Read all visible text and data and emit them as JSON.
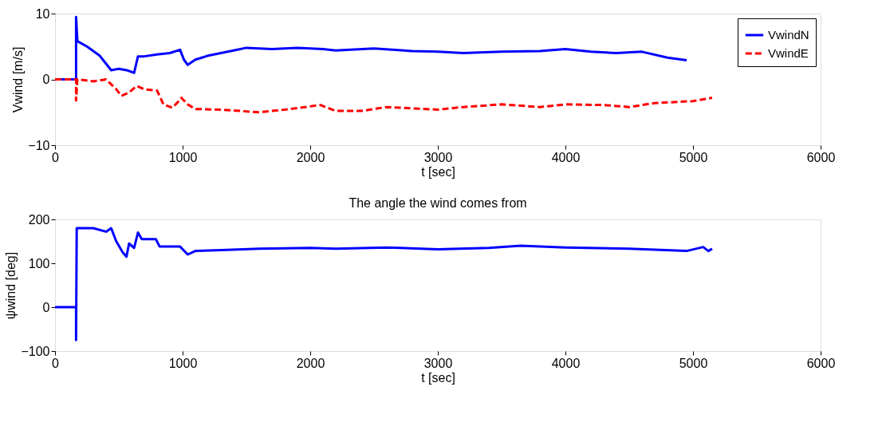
{
  "chart_data": [
    {
      "type": "line",
      "xlabel": "t [sec]",
      "ylabel": "Vwind [m/s]",
      "xlim": [
        0,
        6000
      ],
      "xticks": [
        0,
        1000,
        2000,
        3000,
        4000,
        5000,
        6000
      ],
      "ylim": [
        -10,
        10
      ],
      "yticks": [
        -10,
        0,
        10
      ],
      "grid": false,
      "legend": "top right",
      "marker": "none",
      "series": [
        {
          "name": "VwindN",
          "color": "#0000ff",
          "line_style": "solid",
          "x": [
            0,
            165,
            165,
            175,
            250,
            350,
            440,
            500,
            560,
            620,
            650,
            700,
            800,
            900,
            980,
            1010,
            1040,
            1100,
            1200,
            1300,
            1400,
            1500,
            1700,
            1900,
            2100,
            2200,
            2500,
            2800,
            3000,
            3200,
            3500,
            3800,
            4000,
            4200,
            4400,
            4600,
            4800,
            4950
          ],
          "values": [
            0,
            0,
            9.5,
            5.8,
            5.0,
            3.6,
            1.4,
            1.6,
            1.4,
            1.0,
            3.5,
            3.5,
            3.8,
            4.0,
            4.5,
            3.0,
            2.2,
            3.0,
            3.6,
            4.0,
            4.4,
            4.8,
            4.6,
            4.8,
            4.6,
            4.4,
            4.7,
            4.3,
            4.2,
            4.0,
            4.2,
            4.3,
            4.6,
            4.2,
            4.0,
            4.2,
            3.3,
            2.9
          ]
        },
        {
          "name": "VwindE",
          "color": "#ff0000",
          "line_style": "dashed",
          "x": [
            0,
            165,
            165,
            175,
            300,
            400,
            480,
            520,
            580,
            640,
            700,
            800,
            850,
            920,
            960,
            990,
            1040,
            1100,
            1300,
            1600,
            1800,
            2080,
            2200,
            2400,
            2600,
            2800,
            3000,
            3200,
            3500,
            3800,
            4000,
            4300,
            4500,
            4700,
            5000,
            5150
          ],
          "values": [
            0,
            0,
            -3.2,
            0,
            -0.3,
            0,
            -1.5,
            -2.5,
            -2.0,
            -1.0,
            -1.5,
            -1.7,
            -3.8,
            -4.3,
            -3.5,
            -2.8,
            -3.8,
            -4.5,
            -4.6,
            -5.0,
            -4.6,
            -3.9,
            -4.8,
            -4.8,
            -4.2,
            -4.4,
            -4.6,
            -4.2,
            -3.8,
            -4.2,
            -3.8,
            -3.9,
            -4.2,
            -3.6,
            -3.3,
            -2.8
          ]
        }
      ]
    },
    {
      "type": "line",
      "title": "The angle the wind comes from",
      "xlabel": "t [sec]",
      "ylabel": "ψwind [deg]",
      "xlim": [
        0,
        6000
      ],
      "xticks": [
        0,
        1000,
        2000,
        3000,
        4000,
        5000,
        6000
      ],
      "ylim": [
        -100,
        200
      ],
      "yticks": [
        -100,
        0,
        100,
        200
      ],
      "grid": false,
      "legend": false,
      "marker": "none",
      "series": [
        {
          "color": "#0000ff",
          "line_style": "solid",
          "x": [
            0,
            165,
            165,
            170,
            300,
            400,
            440,
            480,
            530,
            560,
            580,
            620,
            650,
            680,
            790,
            820,
            980,
            1040,
            1100,
            1300,
            1600,
            2000,
            2200,
            2600,
            3000,
            3400,
            3650,
            4000,
            4500,
            4950,
            5080,
            5120,
            5150
          ],
          "values": [
            0,
            0,
            -75,
            180,
            180,
            172,
            180,
            150,
            125,
            115,
            145,
            135,
            170,
            155,
            155,
            138,
            138,
            120,
            128,
            130,
            133,
            135,
            133,
            136,
            132,
            135,
            140,
            136,
            133,
            128,
            137,
            128,
            133
          ]
        }
      ]
    }
  ]
}
